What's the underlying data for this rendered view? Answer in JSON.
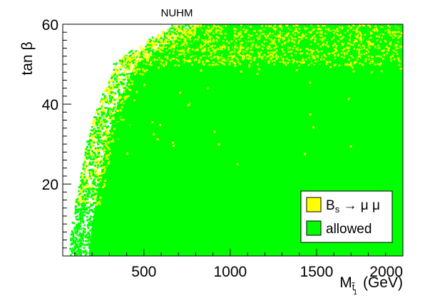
{
  "chart_data": {
    "type": "scatter",
    "title": "NUHM",
    "xlabel": {
      "main": "M",
      "sub": "t̃",
      "sub2": "1",
      "unit": "(GeV)"
    },
    "ylabel": {
      "main": "tan",
      "greek": "β"
    },
    "xlim": [
      30,
      2000
    ],
    "ylim": [
      2,
      60
    ],
    "x_ticks": [
      500,
      1000,
      1500,
      2000
    ],
    "y_ticks": [
      20,
      40,
      60
    ],
    "grid": false,
    "legend_position": "bottom-right",
    "series": [
      {
        "name": "B_s → μ μ",
        "label_main": "B",
        "label_sub": "s",
        "label_rest": " → μ μ",
        "color": "#ffff00",
        "region_note": "dense along upper edge (tan β ≳ 50) and along the low-mass boundary"
      },
      {
        "name": "allowed",
        "label_main": "allowed",
        "color": "#00ff00",
        "region_note": "fills most of the plane; boundary runs from ~60 GeV at tan β ≈ 5 to ~700 GeV at tan β ≈ 60"
      }
    ],
    "boundary": {
      "tanb": [
        2,
        10,
        20,
        30,
        40,
        50,
        60
      ],
      "mstop_min": [
        60,
        80,
        120,
        160,
        230,
        330,
        700
      ]
    }
  }
}
